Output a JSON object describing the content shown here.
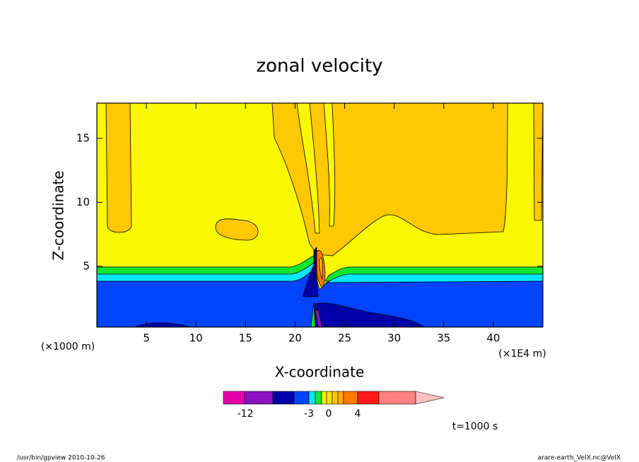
{
  "chart_data": {
    "type": "contour",
    "title": "zonal velocity",
    "xlabel": "X-coordinate",
    "ylabel": "Z-coordinate",
    "xunit": "(×1E4 m)",
    "yunit": "(×1000 m)",
    "xlim": [
      0,
      45
    ],
    "ylim": [
      0.25,
      17.75
    ],
    "xticks": [
      5,
      10,
      15,
      20,
      25,
      30,
      35,
      40
    ],
    "yticks": [
      5,
      10,
      15
    ],
    "colorbar": {
      "colors": [
        "#e600aa",
        "#8a10c0",
        "#0000a8",
        "#0044ff",
        "#00e8ff",
        "#10e830",
        "#f8f800",
        "#ffe000",
        "#ffc800",
        "#ffa800",
        "#ff7800",
        "#ff1a1a",
        "#ff8080",
        "#ffc0c0"
      ],
      "ticks": [
        -12,
        -3,
        0,
        4
      ]
    },
    "time_label": "t=1000 s",
    "footer_left": "/usr/bin/gpview   2010-10-26",
    "footer_right": "arare-earth_VelX.nc@VelX"
  }
}
